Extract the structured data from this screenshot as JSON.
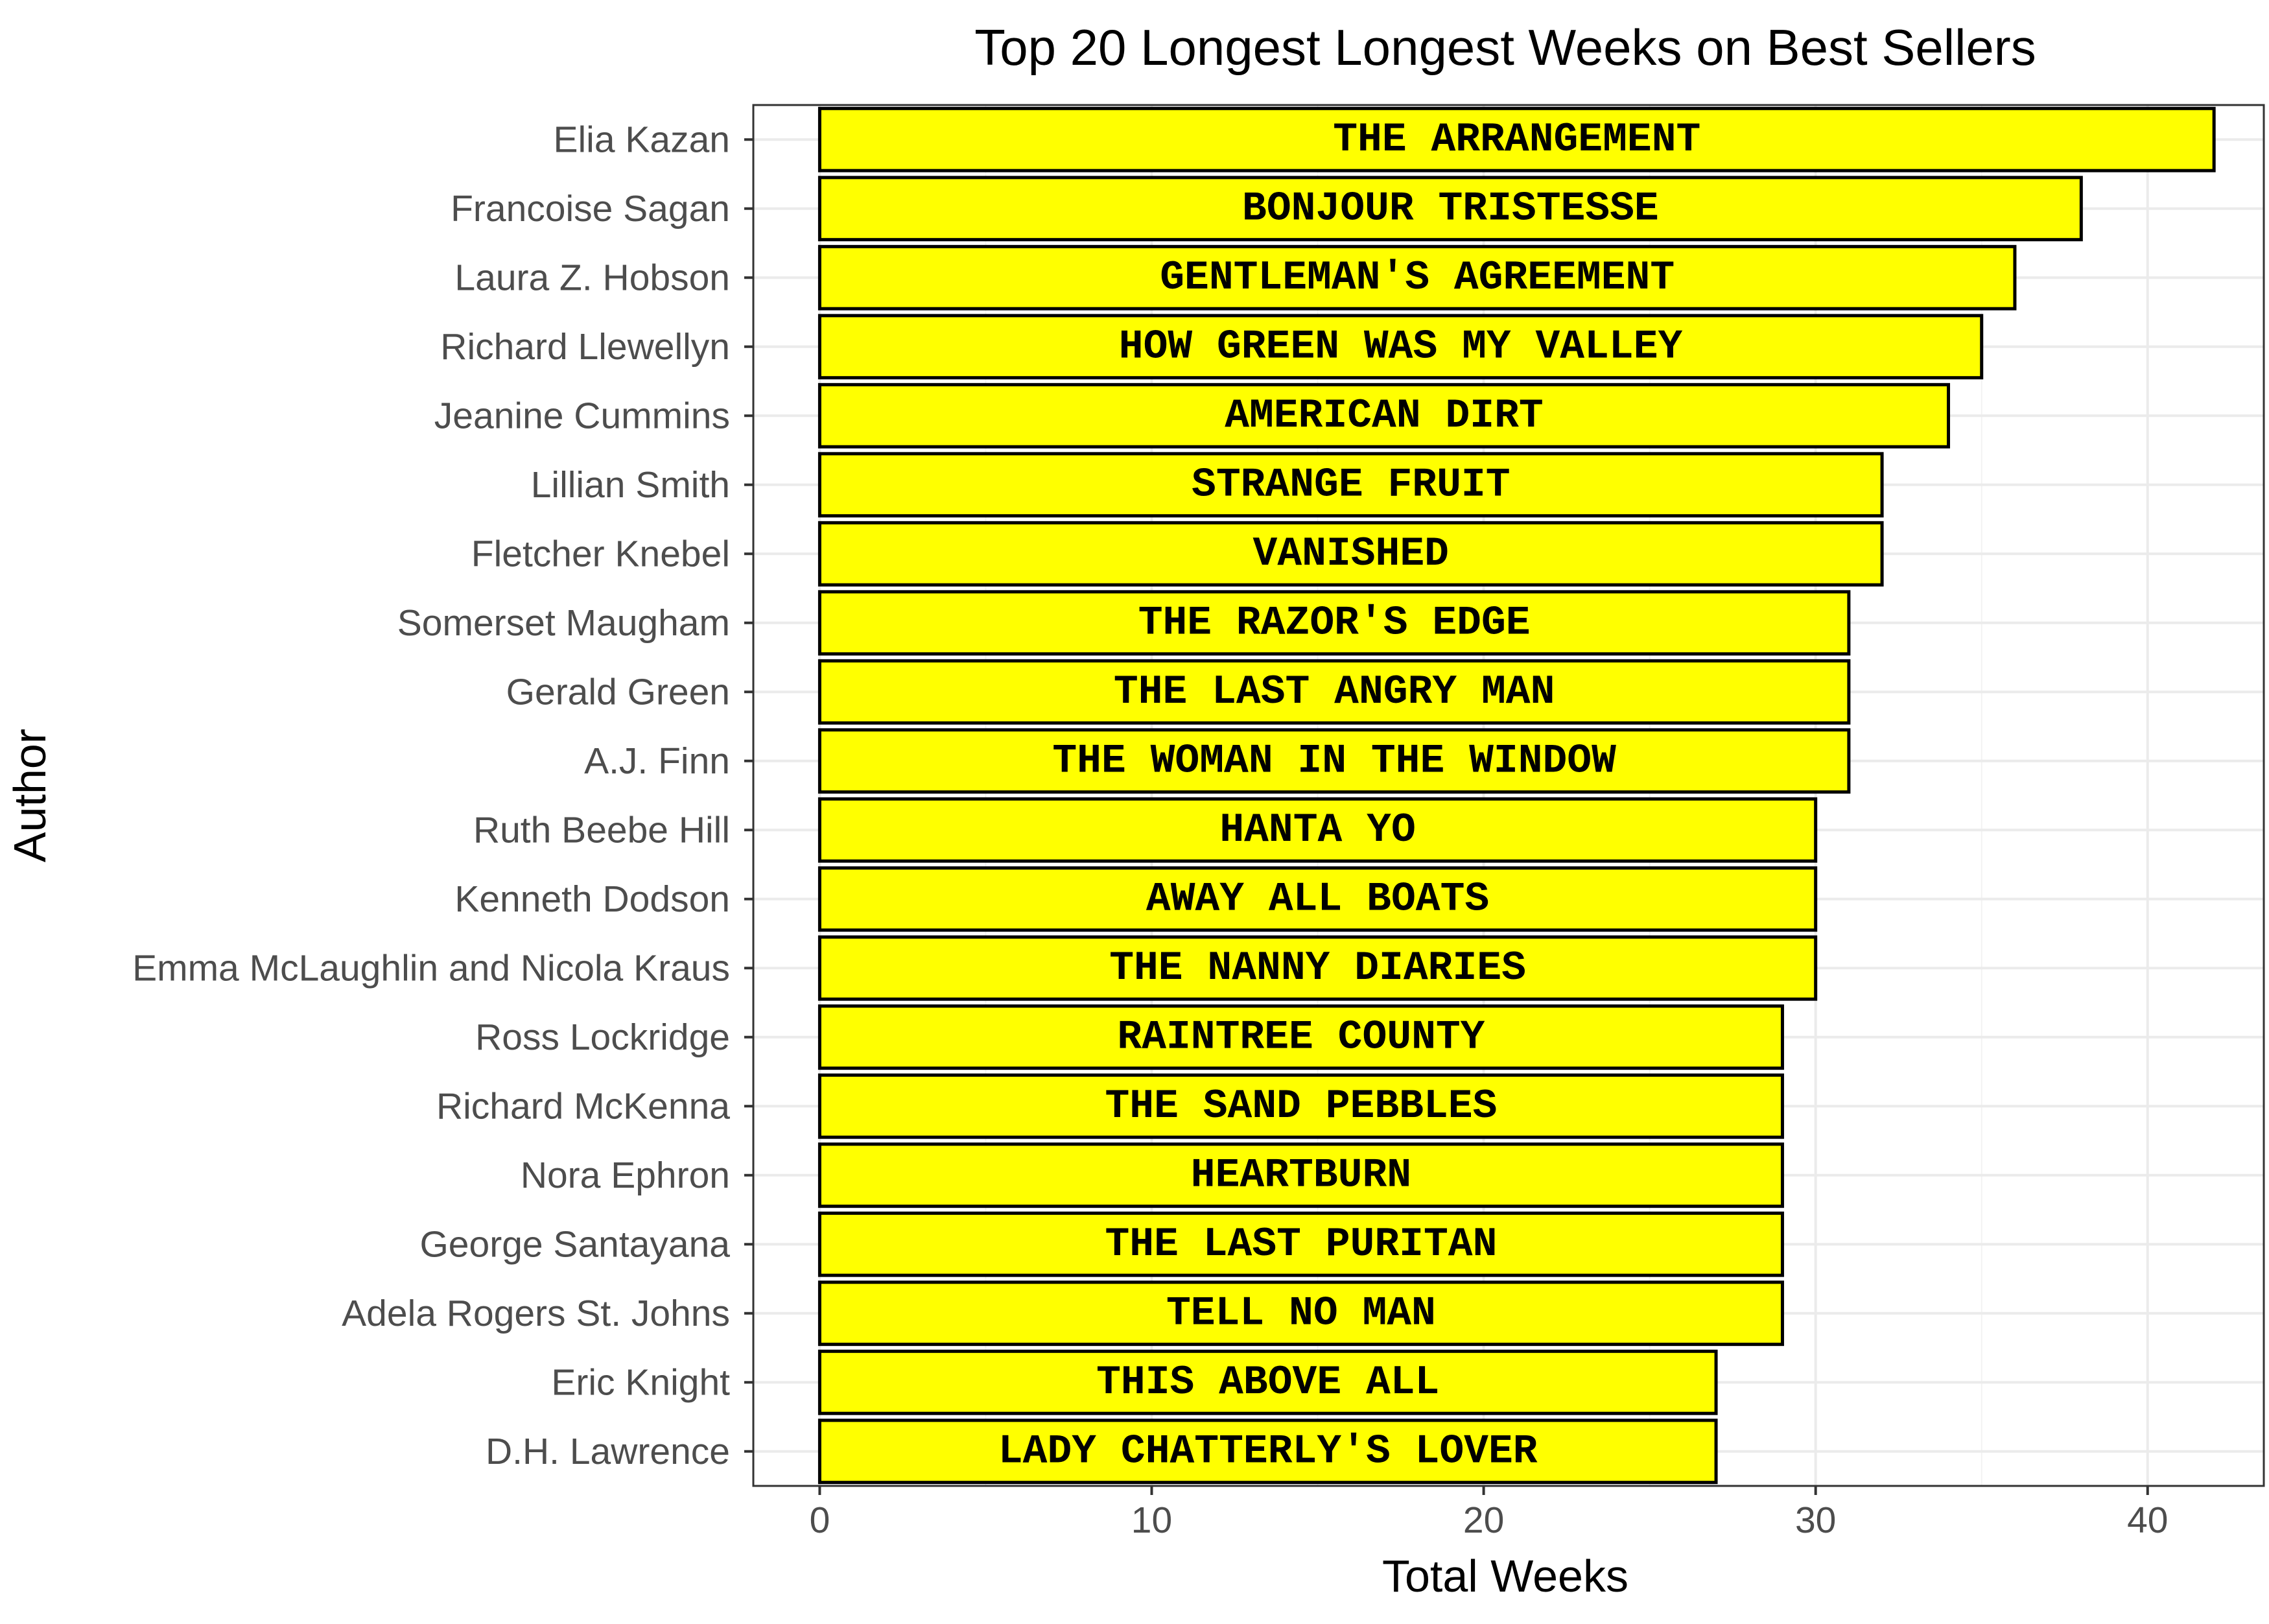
{
  "chart_data": {
    "type": "bar",
    "orientation": "horizontal",
    "title": "Top 20 Longest Longest Weeks on Best Sellers",
    "xlabel": "Total Weeks",
    "ylabel": "Author",
    "xlim": [
      -2,
      43.5
    ],
    "xticks": [
      0,
      10,
      20,
      30,
      40
    ],
    "grid": true,
    "legend": "none",
    "bar_color": "#ffff00",
    "bar_outline": "#000000",
    "categories": [
      "Elia Kazan",
      "Francoise Sagan",
      "Laura Z. Hobson",
      "Richard Llewellyn",
      "Jeanine Cummins",
      "Lillian Smith",
      "Fletcher Knebel",
      "Somerset Maugham",
      "Gerald Green",
      "A.J. Finn",
      "Ruth Beebe Hill",
      "Kenneth Dodson",
      "Emma McLaughlin and Nicola Kraus",
      "Ross Lockridge",
      "Richard McKenna",
      "Nora Ephron",
      "George Santayana",
      "Adela Rogers St. Johns",
      "Eric Knight",
      "D.H. Lawrence"
    ],
    "values": [
      42,
      38,
      36,
      35,
      34,
      32,
      32,
      31,
      31,
      31,
      30,
      30,
      30,
      29,
      29,
      29,
      29,
      29,
      27,
      27
    ],
    "labels": [
      "THE ARRANGEMENT",
      "BONJOUR TRISTESSE",
      "GENTLEMAN'S AGREEMENT",
      "HOW GREEN WAS MY VALLEY",
      "AMERICAN DIRT",
      "STRANGE FRUIT",
      "VANISHED",
      "THE RAZOR'S EDGE",
      "THE LAST ANGRY MAN",
      "THE WOMAN IN THE WINDOW",
      "HANTA YO",
      "AWAY ALL BOATS",
      "THE NANNY DIARIES",
      "RAINTREE COUNTY",
      "THE SAND PEBBLES",
      "HEARTBURN",
      "THE LAST PURITAN",
      "TELL NO MAN",
      "THIS ABOVE ALL",
      "LADY CHATTERLY'S LOVER"
    ]
  }
}
